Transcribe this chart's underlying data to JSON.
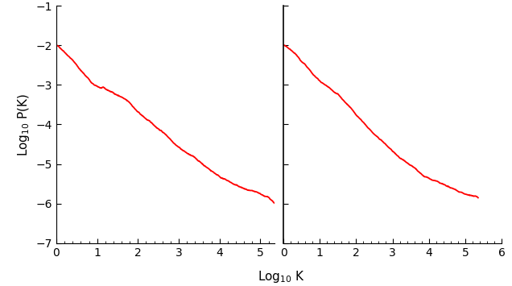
{
  "title": "",
  "xlabel": "Log$_{10}$ K",
  "ylabel": "Log$_{10}$ P(K)",
  "xlim_left": [
    0,
    5.35
  ],
  "xlim_right": [
    0,
    5.6
  ],
  "xticks_right_max": 6,
  "ylim": [
    -7,
    -1
  ],
  "yticks": [
    -7,
    -6,
    -5,
    -4,
    -3,
    -2,
    -1
  ],
  "xticks_left": [
    0,
    1,
    2,
    3,
    4,
    5
  ],
  "xticks_right": [
    0,
    1,
    2,
    3,
    4,
    5,
    6
  ],
  "line_color": "#ff0000",
  "line_width": 1.3,
  "background_color": "#ffffff",
  "figsize": [
    6.36,
    3.55
  ],
  "dpi": 100,
  "left_x": [
    0.0,
    0.2,
    0.4,
    0.6,
    0.7,
    0.8,
    0.85,
    0.9,
    0.95,
    1.0,
    1.05,
    1.1,
    1.15,
    1.2,
    1.3,
    1.4,
    1.5,
    1.6,
    1.7,
    1.8,
    1.9,
    2.0,
    2.2,
    2.4,
    2.6,
    2.8,
    3.0,
    3.2,
    3.4,
    3.6,
    3.8,
    4.0,
    4.2,
    4.4,
    4.6,
    4.8,
    5.0,
    5.1,
    5.2,
    5.3
  ],
  "left_y": [
    -2.0,
    -2.15,
    -2.35,
    -2.6,
    -2.72,
    -2.82,
    -2.9,
    -2.95,
    -2.99,
    -3.02,
    -3.04,
    -3.06,
    -3.06,
    -3.1,
    -3.15,
    -3.2,
    -3.25,
    -3.3,
    -3.38,
    -3.47,
    -3.58,
    -3.7,
    -3.88,
    -4.05,
    -4.2,
    -4.38,
    -4.55,
    -4.7,
    -4.84,
    -5.0,
    -5.15,
    -5.28,
    -5.4,
    -5.52,
    -5.62,
    -5.72,
    -5.82,
    -5.87,
    -5.92,
    -6.0
  ],
  "right_x": [
    0.0,
    0.1,
    0.2,
    0.3,
    0.4,
    0.5,
    0.6,
    0.65,
    0.7,
    0.75,
    0.8,
    0.85,
    0.9,
    0.95,
    1.0,
    1.05,
    1.1,
    1.15,
    1.2,
    1.3,
    1.4,
    1.5,
    1.6,
    1.7,
    1.8,
    1.9,
    2.0,
    2.2,
    2.4,
    2.6,
    2.8,
    3.0,
    3.2,
    3.4,
    3.6,
    3.8,
    4.0,
    4.2,
    4.4,
    4.6,
    4.8,
    5.0,
    5.1,
    5.2,
    5.3,
    5.35
  ],
  "right_y": [
    -2.0,
    -2.05,
    -2.12,
    -2.2,
    -2.3,
    -2.42,
    -2.52,
    -2.59,
    -2.65,
    -2.7,
    -2.76,
    -2.8,
    -2.85,
    -2.88,
    -2.92,
    -2.95,
    -2.98,
    -3.01,
    -3.05,
    -3.12,
    -3.2,
    -3.28,
    -3.38,
    -3.47,
    -3.57,
    -3.68,
    -3.8,
    -4.0,
    -4.2,
    -4.38,
    -4.56,
    -4.74,
    -4.9,
    -5.06,
    -5.2,
    -5.35,
    -5.47,
    -5.56,
    -5.65,
    -5.73,
    -5.8,
    -5.87,
    -5.9,
    -5.93,
    -5.97,
    -6.0
  ]
}
